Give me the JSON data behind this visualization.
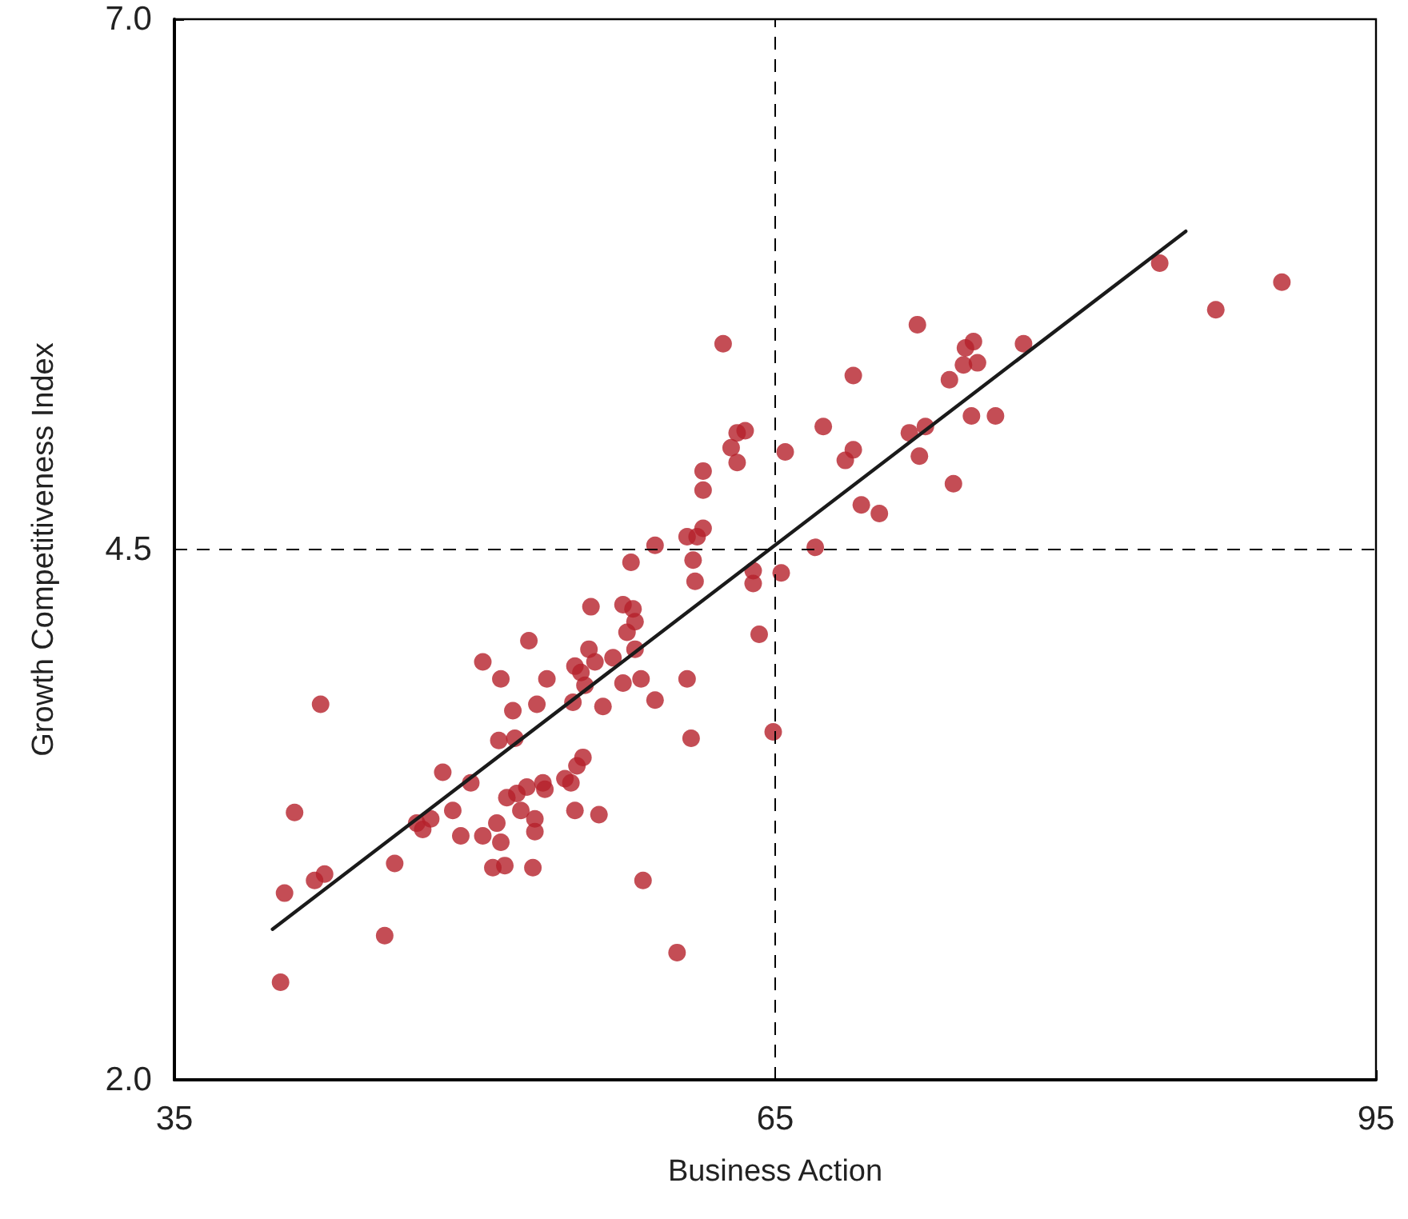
{
  "chart_data": {
    "type": "scatter",
    "xlabel": "Business Action",
    "ylabel": "Growth Competitiveness Index",
    "xlim": [
      35,
      95
    ],
    "xticks": [
      35,
      65,
      95
    ],
    "ylim": [
      2,
      7
    ],
    "yticks": [
      {
        "value": 2,
        "label": "2.0"
      },
      {
        "value": 4.5,
        "label": "4.5"
      },
      {
        "value": 7,
        "label": "7.0"
      }
    ],
    "marker": "circle",
    "ref_lines": [
      {
        "axis": "x",
        "value": 65,
        "color": "#000000",
        "line_style": "dashed"
      },
      {
        "axis": "y",
        "value": 4.5,
        "color": "#000000",
        "line_style": "dashed"
      }
    ],
    "series": [
      {
        "color": "#b5202a",
        "x": [
          40.3,
          40.5,
          41.0,
          42.0,
          42.5,
          42.3,
          45.5,
          46.0,
          47.1,
          47.4,
          47.8,
          48.4,
          48.9,
          49.3,
          49.8,
          50.4,
          50.4,
          50.9,
          51.1,
          51.3,
          51.5,
          51.3,
          51.2,
          51.6,
          51.9,
          52.0,
          52.1,
          52.3,
          52.6,
          52.7,
          53.0,
          53.0,
          52.9,
          53.1,
          53.4,
          53.5,
          53.6,
          54.5,
          54.8,
          54.9,
          55.0,
          55.0,
          55.1,
          55.3,
          55.4,
          55.5,
          55.7,
          55.8,
          56.0,
          56.2,
          56.4,
          56.9,
          57.4,
          57.4,
          57.6,
          57.8,
          57.9,
          58.0,
          58.0,
          58.3,
          58.4,
          59.0,
          59.0,
          60.1,
          60.6,
          60.6,
          60.8,
          60.9,
          61.0,
          61.1,
          61.4,
          61.4,
          61.4,
          62.4,
          62.8,
          63.1,
          63.1,
          63.5,
          63.9,
          63.9,
          64.2,
          64.9,
          65.3,
          65.5,
          67.0,
          67.4,
          68.5,
          68.9,
          68.9,
          69.3,
          70.2,
          71.7,
          72.1,
          72.2,
          72.5,
          73.7,
          73.9,
          74.4,
          74.5,
          74.9,
          75.1,
          74.8,
          76.0,
          77.4,
          84.2,
          87.0,
          90.3
        ],
        "values": [
          2.46,
          2.88,
          3.26,
          2.94,
          2.97,
          3.77,
          2.68,
          3.02,
          3.21,
          3.18,
          3.23,
          3.45,
          3.27,
          3.15,
          3.4,
          3.97,
          3.15,
          3.0,
          3.21,
          3.12,
          3.01,
          3.89,
          3.6,
          3.33,
          3.74,
          3.61,
          3.35,
          3.27,
          3.38,
          4.07,
          3.23,
          3.17,
          3.0,
          3.77,
          3.4,
          3.37,
          3.89,
          3.42,
          3.4,
          3.78,
          3.27,
          3.95,
          3.48,
          3.92,
          3.52,
          3.86,
          4.03,
          4.23,
          3.97,
          3.25,
          3.76,
          3.99,
          3.87,
          4.24,
          4.11,
          4.44,
          4.22,
          4.16,
          4.03,
          3.89,
          2.94,
          4.52,
          3.79,
          2.6,
          4.56,
          3.89,
          3.61,
          4.45,
          4.35,
          4.56,
          4.6,
          4.78,
          4.87,
          5.47,
          4.98,
          5.05,
          4.91,
          5.06,
          4.4,
          4.34,
          4.1,
          3.64,
          4.39,
          4.96,
          4.51,
          5.08,
          4.92,
          4.97,
          5.32,
          4.71,
          4.67,
          5.05,
          5.56,
          4.94,
          5.08,
          5.3,
          4.81,
          5.37,
          5.45,
          5.48,
          5.38,
          5.13,
          5.13,
          5.47,
          5.85,
          5.63,
          5.76
        ]
      },
      {
        "type": "line",
        "color": "#1a1a1a",
        "marker": "none",
        "line_style": "solid",
        "x": [
          39.9,
          85.5
        ],
        "values": [
          2.71,
          6.0
        ]
      }
    ]
  }
}
